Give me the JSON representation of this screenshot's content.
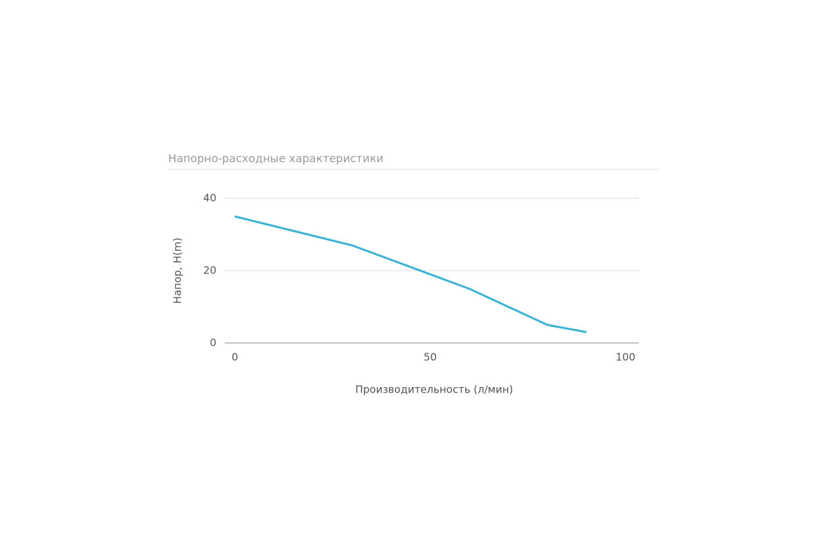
{
  "chart_data": {
    "type": "line",
    "title": "Напорно-расходные характеристики",
    "x_label": "Производительность (л/мин)",
    "y_label": "Напор, H(m)",
    "x": [
      0,
      30,
      60,
      80,
      90
    ],
    "series": [
      {
        "name": "Напор",
        "color": "#3bb3d4",
        "values": [
          35,
          27,
          15,
          5,
          3
        ]
      }
    ],
    "xlim": [
      -2.6,
      103.4
    ],
    "xticks": [
      0,
      50,
      100
    ],
    "ylim": [
      0,
      40
    ],
    "yticks": [
      0,
      20,
      40
    ],
    "grid": true
  }
}
